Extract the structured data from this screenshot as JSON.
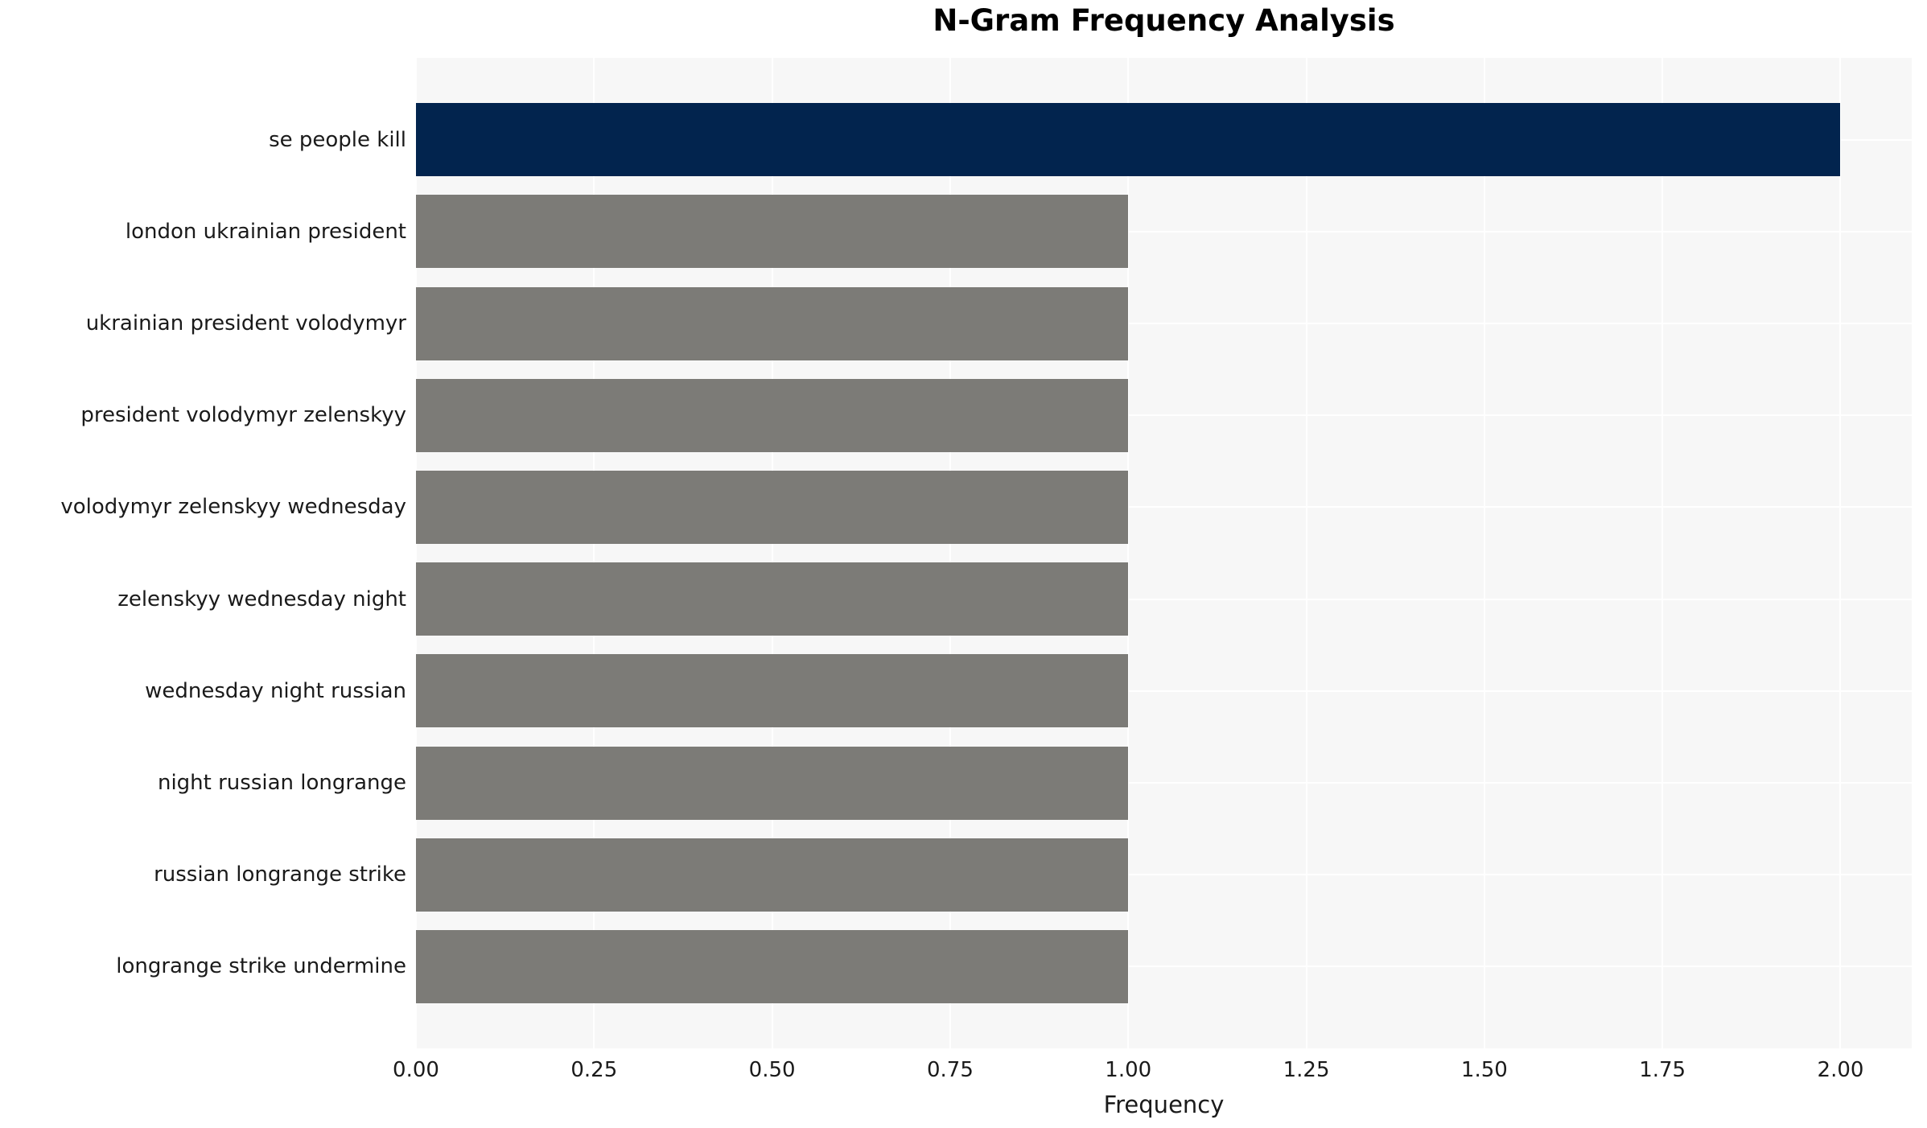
{
  "title": "N-Gram Frequency Analysis",
  "chart_data": {
    "type": "bar",
    "orientation": "horizontal",
    "title": "N-Gram Frequency Analysis",
    "xlabel": "Frequency",
    "ylabel": "",
    "categories": [
      "se people kill",
      "london ukrainian president",
      "ukrainian president volodymyr",
      "president volodymyr zelenskyy",
      "volodymyr zelenskyy wednesday",
      "zelenskyy wednesday night",
      "wednesday night russian",
      "night russian longrange",
      "russian longrange strike",
      "longrange strike undermine"
    ],
    "values": [
      2,
      1,
      1,
      1,
      1,
      1,
      1,
      1,
      1,
      1
    ],
    "bar_colors": [
      "#02244e",
      "#7c7b77",
      "#7c7b77",
      "#7c7b77",
      "#7c7b77",
      "#7c7b77",
      "#7c7b77",
      "#7c7b77",
      "#7c7b77",
      "#7c7b77"
    ],
    "xlim": [
      0,
      2.1
    ],
    "xticks": [
      "0.00",
      "0.25",
      "0.50",
      "0.75",
      "1.00",
      "1.25",
      "1.50",
      "1.75",
      "2.00"
    ],
    "xtick_values": [
      0,
      0.25,
      0.5,
      0.75,
      1.0,
      1.25,
      1.5,
      1.75,
      2.0
    ],
    "grid": true,
    "legend": false,
    "colors": {
      "highlight_bar": "#02244e",
      "default_bar": "#7c7b77",
      "plot_background": "#f7f7f7",
      "gridline": "#ffffff",
      "figure_background": "#ffffff",
      "text": "#1a1a1a",
      "title_text": "#000000"
    }
  }
}
